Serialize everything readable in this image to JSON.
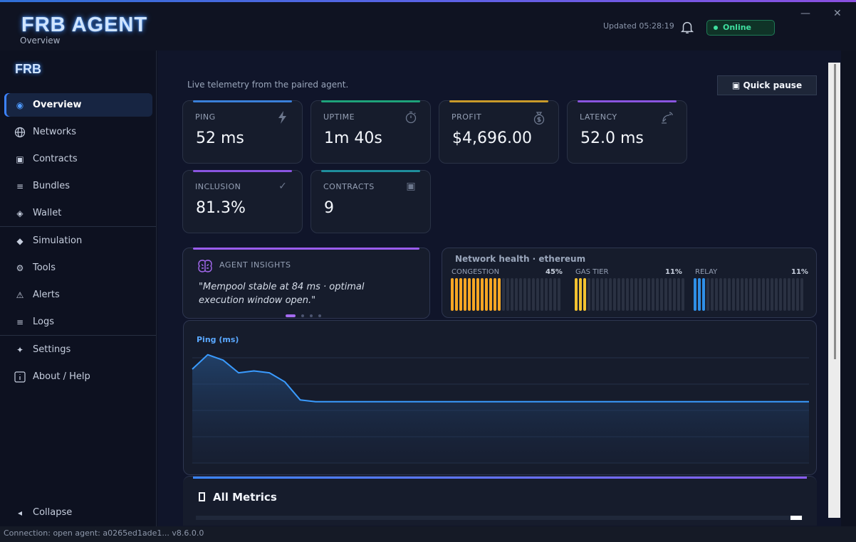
{
  "app": {
    "title": "FRB AGENT",
    "subtitle": "Overview",
    "updated": "Updated 05:28:19",
    "status": "Online",
    "minimize": "—",
    "close": "✕"
  },
  "sidebar": {
    "logo": "FRB",
    "items": [
      {
        "label": "Overview",
        "icon": "radio-icon"
      },
      {
        "label": "Networks",
        "icon": "globe-icon"
      },
      {
        "label": "Contracts",
        "icon": "square-icon"
      },
      {
        "label": "Bundles",
        "icon": "menu-icon"
      },
      {
        "label": "Wallet",
        "icon": "diamond-icon"
      },
      {
        "label": "Simulation",
        "icon": "diamond-filled-icon"
      },
      {
        "label": "Tools",
        "icon": "gear-icon"
      },
      {
        "label": "Alerts",
        "icon": "warning-icon"
      },
      {
        "label": "Logs",
        "icon": "menu-icon"
      },
      {
        "label": "Settings",
        "icon": "sparkle-icon"
      },
      {
        "label": "About / Help",
        "icon": "info-icon"
      }
    ],
    "collapse": "Collapse"
  },
  "main": {
    "subtitle": "Live telemetry from the paired agent.",
    "quick_pause": "Quick pause",
    "cards": [
      {
        "label": "PING",
        "value": "52 ms",
        "icon": "bolt-icon",
        "color": "#3a7fd8"
      },
      {
        "label": "UPTIME",
        "value": "1m 40s",
        "icon": "stopwatch-icon",
        "color": "#1ea37a"
      },
      {
        "label": "PROFIT",
        "value": "$4,696.00",
        "icon": "money-bag-icon",
        "color": "#c99a2a"
      },
      {
        "label": "LATENCY",
        "value": "52.0 ms",
        "icon": "satellite-icon",
        "color": "#8a55e0"
      },
      {
        "label": "INCLUSION",
        "value": "81.3%",
        "icon": "check-icon",
        "color": "#8a55e0"
      },
      {
        "label": "CONTRACTS",
        "value": "9",
        "icon": "square-icon",
        "color": "#1f8e9c"
      }
    ],
    "insights": {
      "title": "AGENT INSIGHTS",
      "text": "\"Mempool stable at 84 ms · optimal execution window open.\""
    },
    "network_health": {
      "title": "Network health · ethereum",
      "gauges": [
        {
          "label": "CONGESTION",
          "pct": "45%",
          "fill": 0.45,
          "color": "#f5a623"
        },
        {
          "label": "GAS TIER",
          "pct": "11%",
          "fill": 0.11,
          "color": "#f2c230"
        },
        {
          "label": "RELAY",
          "pct": "11%",
          "fill": 0.11,
          "color": "#2f8fe6"
        }
      ]
    },
    "all_metrics": "All Metrics"
  },
  "chart_data": {
    "type": "area",
    "title": "Ping (ms)",
    "x": [
      0,
      1,
      2,
      3,
      4,
      5,
      6,
      7,
      8,
      9,
      10,
      11,
      12,
      13,
      14,
      15,
      16,
      17,
      18,
      19,
      20,
      21,
      22,
      23,
      24,
      25,
      26,
      27,
      28,
      29,
      30,
      31,
      32,
      33,
      34,
      35,
      36,
      37,
      38,
      39,
      40
    ],
    "values": [
      72,
      80,
      77,
      70,
      71,
      70,
      65,
      55,
      54,
      54,
      54,
      54,
      54,
      54,
      54,
      54,
      54,
      54,
      54,
      54,
      54,
      54,
      54,
      54,
      54,
      54,
      54,
      54,
      54,
      54,
      54,
      54,
      54,
      54,
      54,
      54,
      54,
      54,
      54,
      54,
      54
    ],
    "grid": true
  },
  "statusbar": {
    "text": "Connection: open   agent: a0265ed1ade1...   v8.6.0.0"
  }
}
